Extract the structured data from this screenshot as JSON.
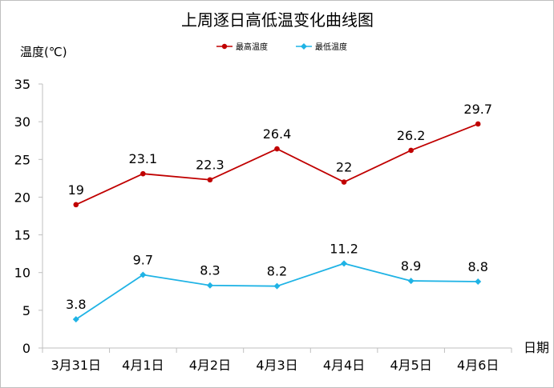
{
  "chart_data": {
    "type": "line",
    "title": "上周逐日高低温变化曲线图",
    "ylabel": "温度(℃)",
    "xlabel": "日期",
    "categories": [
      "3月31日",
      "4月1日",
      "4月2日",
      "4月3日",
      "4月4日",
      "4月5日",
      "4月6日"
    ],
    "ylim": [
      0,
      35
    ],
    "yticks": [
      "0",
      "5",
      "10",
      "15",
      "20",
      "25",
      "30",
      "35"
    ],
    "grid": false,
    "legend_position": "top",
    "series": [
      {
        "name": "最高温度",
        "color": "#C00000",
        "values": [
          19,
          23.1,
          22.3,
          26.4,
          22,
          26.2,
          29.7
        ],
        "labels": [
          "19",
          "23.1",
          "22.3",
          "26.4",
          "22",
          "26.2",
          "29.7"
        ]
      },
      {
        "name": "最低温度",
        "color": "#1FB3E5",
        "values": [
          3.8,
          9.7,
          8.3,
          8.2,
          11.2,
          8.9,
          8.8
        ],
        "labels": [
          "3.8",
          "9.7",
          "8.3",
          "8.2",
          "11.2",
          "8.9",
          "8.8"
        ]
      }
    ]
  }
}
